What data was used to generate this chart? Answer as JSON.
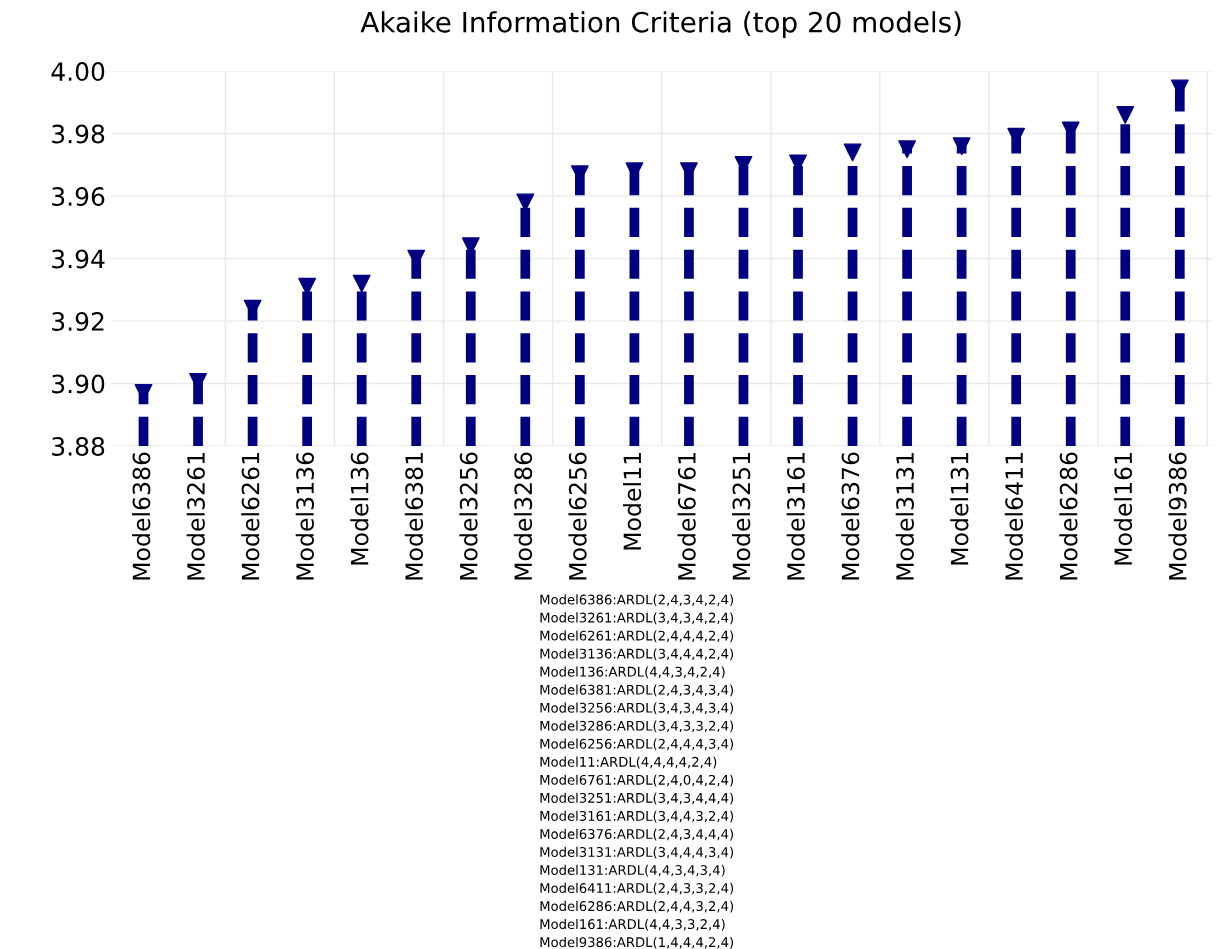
{
  "chart_data": {
    "type": "lollipop",
    "title": "Akaike Information Criteria (top 20 models)",
    "categories": [
      "Model6386",
      "Model3261",
      "Model6261",
      "Model3136",
      "Model136",
      "Model6381",
      "Model3256",
      "Model3286",
      "Model6256",
      "Model11",
      "Model6761",
      "Model3251",
      "Model3161",
      "Model6376",
      "Model3131",
      "Model131",
      "Model6411",
      "Model6286",
      "Model161",
      "Model9386"
    ],
    "values": [
      3.897,
      3.9005,
      3.924,
      3.931,
      3.932,
      3.94,
      3.944,
      3.958,
      3.967,
      3.968,
      3.968,
      3.97,
      3.9705,
      3.974,
      3.975,
      3.976,
      3.979,
      3.981,
      3.986,
      3.9945
    ],
    "color": "#000080",
    "marker": "triangle",
    "line_style": "dashed",
    "grid": true,
    "ylim": [
      3.88,
      4.0
    ],
    "yticks": [
      {
        "value": 3.88,
        "label": "3.88"
      },
      {
        "value": 3.9,
        "label": "3.90"
      },
      {
        "value": 3.92,
        "label": "3.92"
      },
      {
        "value": 3.94,
        "label": "3.94"
      },
      {
        "value": 3.96,
        "label": "3.96"
      },
      {
        "value": 3.98,
        "label": "3.98"
      },
      {
        "value": 4.0,
        "label": "4.00"
      }
    ],
    "annotations": [
      "Model6386:ARDL(2,4,3,4,2,4)",
      "Model3261:ARDL(3,4,3,4,2,4)",
      "Model6261:ARDL(2,4,4,4,2,4)",
      "Model3136:ARDL(3,4,4,4,2,4)",
      "Model136:ARDL(4,4,3,4,2,4)",
      "Model6381:ARDL(2,4,3,4,3,4)",
      "Model3256:ARDL(3,4,3,4,3,4)",
      "Model3286:ARDL(3,4,3,3,2,4)",
      "Model6256:ARDL(2,4,4,4,3,4)",
      "Model11:ARDL(4,4,4,4,2,4)",
      "Model6761:ARDL(2,4,0,4,2,4)",
      "Model3251:ARDL(3,4,3,4,4,4)",
      "Model3161:ARDL(3,4,4,3,2,4)",
      "Model6376:ARDL(2,4,3,4,4,4)",
      "Model3131:ARDL(3,4,4,4,3,4)",
      "Model131:ARDL(4,4,3,4,3,4)",
      "Model6411:ARDL(2,4,3,3,2,4)",
      "Model6286:ARDL(2,4,4,3,2,4)",
      "Model161:ARDL(4,4,3,3,2,4)",
      "Model9386:ARDL(1,4,4,4,2,4)"
    ]
  }
}
